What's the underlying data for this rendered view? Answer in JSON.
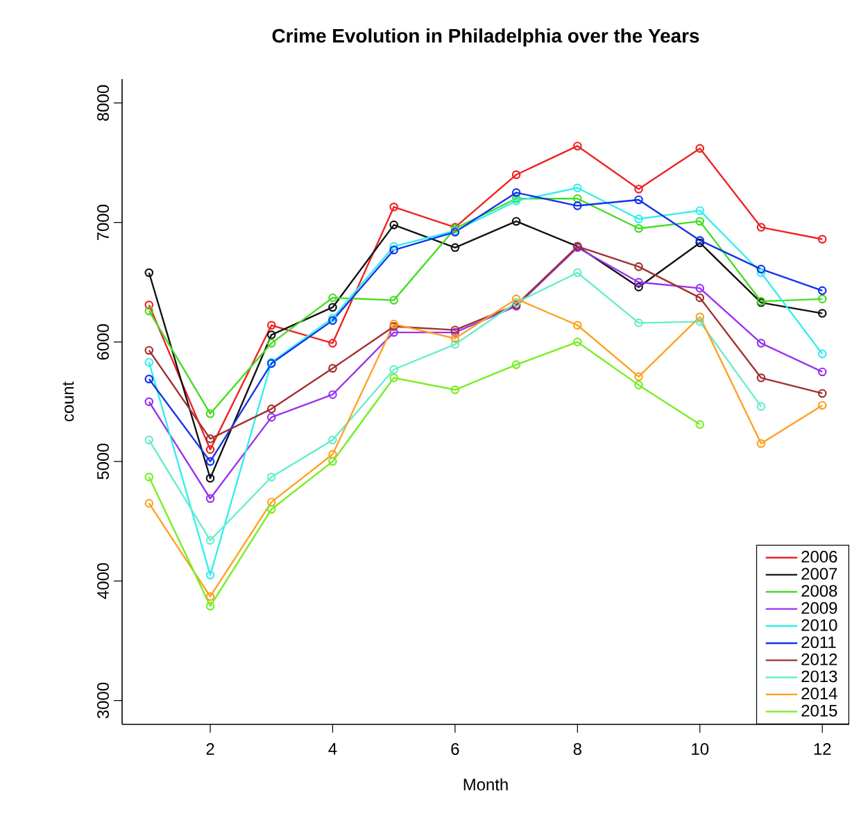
{
  "chart_data": {
    "type": "line",
    "title": "Crime Evolution in Philadelphia over the Years",
    "xlabel": "Month",
    "ylabel": "count",
    "x": [
      1,
      2,
      3,
      4,
      5,
      6,
      7,
      8,
      9,
      10,
      11,
      12
    ],
    "xlim": [
      0.56,
      12.44
    ],
    "ylim": [
      2800,
      8200
    ],
    "xticks": [
      2,
      4,
      6,
      8,
      10,
      12
    ],
    "yticks": [
      3000,
      4000,
      5000,
      6000,
      7000,
      8000
    ],
    "marker": "circle",
    "legend": "bottom right",
    "grid": false,
    "series": [
      {
        "name": "2006",
        "color": "#ee2222",
        "values": [
          6310,
          5100,
          6140,
          5990,
          7130,
          6960,
          7400,
          7640,
          7280,
          7620,
          6960,
          6860
        ]
      },
      {
        "name": "2007",
        "color": "#111111",
        "values": [
          6580,
          4860,
          6060,
          6290,
          6980,
          6790,
          7010,
          6800,
          6460,
          6830,
          6330,
          6240
        ]
      },
      {
        "name": "2008",
        "color": "#44dd22",
        "values": [
          6260,
          5400,
          5990,
          6370,
          6350,
          6950,
          7200,
          7200,
          6950,
          7010,
          6340,
          6360
        ]
      },
      {
        "name": "2009",
        "color": "#9933ee",
        "values": [
          5500,
          4690,
          5370,
          5560,
          6080,
          6080,
          6300,
          6790,
          6500,
          6450,
          5990,
          5750
        ]
      },
      {
        "name": "2010",
        "color": "#33eeee",
        "values": [
          5830,
          4050,
          5830,
          6200,
          6800,
          6930,
          7180,
          7290,
          7030,
          7100,
          6580,
          5900
        ]
      },
      {
        "name": "2011",
        "color": "#1133ee",
        "values": [
          5690,
          5000,
          5820,
          6180,
          6770,
          6920,
          7250,
          7140,
          7190,
          6850,
          6610,
          6430
        ]
      },
      {
        "name": "2012",
        "color": "#a03030",
        "values": [
          5930,
          5190,
          5440,
          5780,
          6130,
          6100,
          6310,
          6800,
          6630,
          6370,
          5700,
          5570
        ]
      },
      {
        "name": "2013",
        "color": "#66eecc",
        "values": [
          5180,
          4340,
          4870,
          5180,
          5770,
          5980,
          6330,
          6580,
          6160,
          6170,
          5460,
          null
        ]
      },
      {
        "name": "2014",
        "color": "#ffa020",
        "values": [
          4650,
          3870,
          4660,
          5060,
          6150,
          6030,
          6360,
          6140,
          5710,
          6210,
          5150,
          5470
        ]
      },
      {
        "name": "2015",
        "color": "#77ee22",
        "values": [
          4870,
          3790,
          4600,
          5000,
          5700,
          5600,
          5810,
          6000,
          5640,
          5310,
          null,
          null
        ]
      }
    ]
  }
}
